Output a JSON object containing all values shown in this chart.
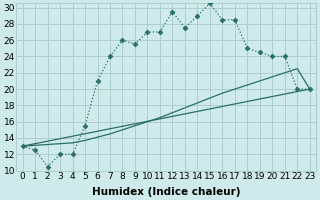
{
  "xlabel": "Humidex (Indice chaleur)",
  "background_color": "#ceeaea",
  "grid_color": "#aecece",
  "line_color": "#2a6e65",
  "xlim": [
    -0.5,
    23.5
  ],
  "ylim": [
    10,
    30.5
  ],
  "xtick_vals": [
    0,
    1,
    2,
    3,
    4,
    5,
    6,
    7,
    8,
    9,
    10,
    11,
    12,
    13,
    14,
    15,
    16,
    17,
    18,
    19,
    20,
    21,
    22,
    23
  ],
  "ytick_vals": [
    10,
    12,
    14,
    16,
    18,
    20,
    22,
    24,
    26,
    28,
    30
  ],
  "main_x": [
    0,
    1,
    2,
    3,
    4,
    5,
    6,
    7,
    8,
    9,
    10,
    11,
    12,
    13,
    14,
    15,
    16,
    17,
    18,
    19,
    20,
    21,
    22,
    23
  ],
  "main_y": [
    13,
    12.5,
    10.5,
    12,
    12,
    15.5,
    21.0,
    24.0,
    26.0,
    25.5,
    27.0,
    27.0,
    29.5,
    27.5,
    29.0,
    30.5,
    28.5,
    28.5,
    25.0,
    24.5,
    24.0,
    24.0,
    20.0,
    20.0
  ],
  "line1_x": [
    0,
    23
  ],
  "line1_y": [
    13,
    20
  ],
  "line2_x": [
    0,
    1,
    2,
    3,
    4,
    5,
    6,
    7,
    8,
    9,
    10,
    11,
    12,
    13,
    14,
    15,
    16,
    17,
    18,
    19,
    20,
    21,
    22,
    23
  ],
  "line2_y": [
    13,
    13.1,
    13.2,
    13.3,
    13.4,
    13.7,
    14.1,
    14.5,
    15.0,
    15.5,
    16.0,
    16.5,
    17.1,
    17.7,
    18.3,
    18.9,
    19.5,
    20.0,
    20.5,
    21.0,
    21.5,
    22.0,
    22.5,
    20.0
  ],
  "font_label": 7.5,
  "font_tick": 6.5
}
